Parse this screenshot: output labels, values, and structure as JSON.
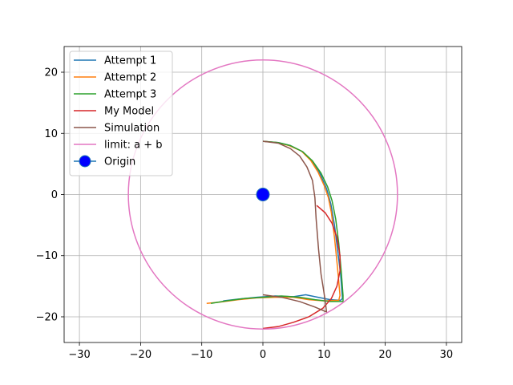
{
  "chart_data": {
    "type": "line",
    "title": "",
    "xlabel": "",
    "ylabel": "",
    "xlim": [
      -32.5,
      32.5
    ],
    "ylim": [
      -24.2,
      24.2
    ],
    "xticks": [
      -30,
      -20,
      -10,
      0,
      10,
      20,
      30
    ],
    "yticks": [
      -20,
      -10,
      0,
      10,
      20
    ],
    "xtick_labels": [
      "−30",
      "−20",
      "−10",
      "0",
      "10",
      "20",
      "30"
    ],
    "ytick_labels": [
      "−20",
      "−10",
      "0",
      "10",
      "20"
    ],
    "grid": true,
    "legend_position": "top-left",
    "series": [
      {
        "name": "Attempt 1",
        "color": "#1f77b4",
        "points": [
          [
            -6.5,
            -17.4
          ],
          [
            -4,
            -17.1
          ],
          [
            -1,
            -16.8
          ],
          [
            2,
            -16.6
          ],
          [
            5,
            -16.7
          ],
          [
            7,
            -16.4
          ],
          [
            9,
            -16.8
          ],
          [
            11,
            -17.2
          ],
          [
            12.7,
            -17.3
          ],
          [
            13.0,
            -17.0
          ],
          [
            12.7,
            -13
          ],
          [
            12.2,
            -9
          ],
          [
            11.7,
            -5
          ],
          [
            11.1,
            -1.5
          ],
          [
            10.4,
            1
          ],
          [
            9.3,
            3.5
          ],
          [
            8,
            5.5
          ],
          [
            6.5,
            7
          ],
          [
            4.5,
            8
          ],
          [
            2.5,
            8.5
          ],
          [
            0,
            8.7
          ]
        ]
      },
      {
        "name": "Attempt 2",
        "color": "#ff7f0e",
        "points": [
          [
            -9.2,
            -17.8
          ],
          [
            -7,
            -17.6
          ],
          [
            -4,
            -17.2
          ],
          [
            -1,
            -16.9
          ],
          [
            2,
            -16.8
          ],
          [
            5,
            -16.8
          ],
          [
            7.5,
            -17.2
          ],
          [
            10,
            -17.4
          ],
          [
            12.4,
            -17.3
          ],
          [
            12.6,
            -16.5
          ],
          [
            12.2,
            -12
          ],
          [
            11.7,
            -7
          ],
          [
            11.2,
            -3
          ],
          [
            10.7,
            -0.5
          ],
          [
            10.0,
            1.5
          ],
          [
            9.0,
            3.7
          ],
          [
            7.8,
            5.6
          ],
          [
            6.3,
            7.1
          ],
          [
            4.3,
            8
          ],
          [
            2.3,
            8.5
          ],
          [
            0,
            8.7
          ]
        ]
      },
      {
        "name": "Attempt 3",
        "color": "#2ca02c",
        "points": [
          [
            -8.5,
            -17.8
          ],
          [
            -6,
            -17.4
          ],
          [
            -3,
            -17.0
          ],
          [
            0,
            -16.8
          ],
          [
            3,
            -16.6
          ],
          [
            6,
            -16.8
          ],
          [
            8.5,
            -17.2
          ],
          [
            11,
            -17.5
          ],
          [
            13.1,
            -17.5
          ],
          [
            13.1,
            -16.5
          ],
          [
            12.8,
            -12.5
          ],
          [
            12.4,
            -8
          ],
          [
            11.9,
            -4
          ],
          [
            11.3,
            -1
          ],
          [
            10.6,
            1.2
          ],
          [
            9.5,
            3.5
          ],
          [
            8.1,
            5.5
          ],
          [
            6.5,
            7
          ],
          [
            4.5,
            8
          ],
          [
            2.5,
            8.5
          ],
          [
            0,
            8.7
          ]
        ]
      },
      {
        "name": "My Model",
        "color": "#d62728",
        "points": [
          [
            8.8,
            -1.8
          ],
          [
            10.2,
            -3
          ],
          [
            11.3,
            -4.7
          ],
          [
            12.1,
            -7
          ],
          [
            12.6,
            -10
          ],
          [
            12.6,
            -12.5
          ],
          [
            12.1,
            -15
          ],
          [
            11.2,
            -17
          ],
          [
            9.8,
            -18.6
          ],
          [
            7.5,
            -20
          ],
          [
            5,
            -20.9
          ],
          [
            2.5,
            -21.6
          ],
          [
            0,
            -21.9
          ]
        ]
      },
      {
        "name": "Simulation",
        "color": "#8c564b",
        "points": [
          [
            0,
            8.7
          ],
          [
            2.5,
            8.4
          ],
          [
            4.5,
            7.5
          ],
          [
            6,
            6.3
          ],
          [
            7.2,
            4.5
          ],
          [
            8.1,
            2.3
          ],
          [
            8.5,
            -0.5
          ],
          [
            8.7,
            -4
          ],
          [
            9.1,
            -9
          ],
          [
            9.5,
            -13
          ],
          [
            9.9,
            -15.5
          ],
          [
            10.2,
            -17.5
          ],
          [
            10.4,
            -19.2
          ],
          [
            8.5,
            -18.4
          ],
          [
            6,
            -17.5
          ],
          [
            3,
            -16.8
          ],
          [
            0,
            -16.4
          ]
        ]
      },
      {
        "name": "limit: a + b",
        "color": "#e377c2",
        "circle": {
          "cx": 0,
          "cy": 0,
          "r": 22
        }
      },
      {
        "name": "Origin",
        "color": "#0000ff",
        "marker": "circle",
        "points": [
          [
            0,
            0
          ]
        ]
      }
    ]
  }
}
